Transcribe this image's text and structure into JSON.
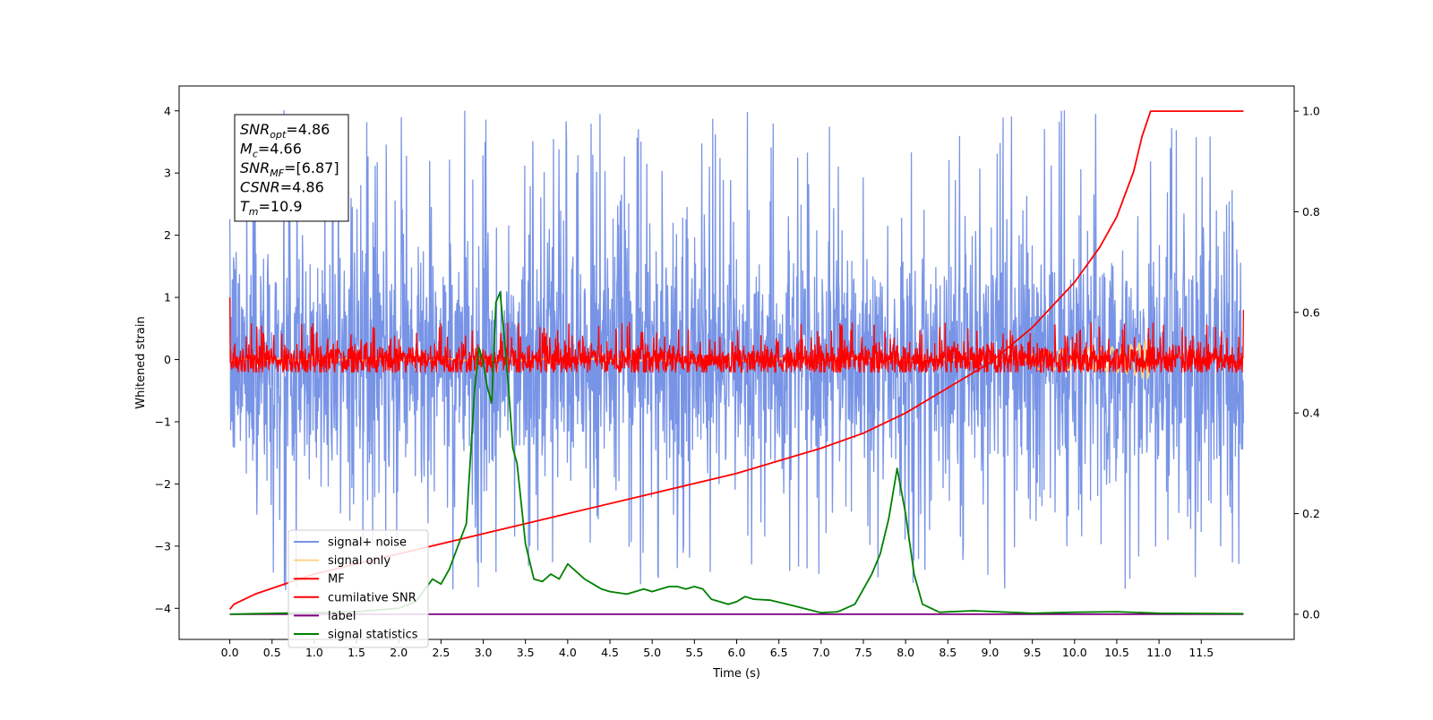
{
  "chart_data": {
    "type": "line",
    "xlabel": "Time (s)",
    "ylabel": "Whitened strain",
    "xlim": [
      -0.6,
      12.6
    ],
    "ylim": [
      -4.5,
      4.4
    ],
    "y2lim": [
      -0.05,
      1.05
    ],
    "x_ticks": [
      0.0,
      0.5,
      1.0,
      1.5,
      2.0,
      2.5,
      3.0,
      3.5,
      4.0,
      4.5,
      5.0,
      5.5,
      6.0,
      6.5,
      7.0,
      7.5,
      8.0,
      8.5,
      9.0,
      9.5,
      10.0,
      10.5,
      11.0,
      11.5
    ],
    "x_tick_labels": [
      "0.0",
      "0.5",
      "1.0",
      "1.5",
      "2.0",
      "2.5",
      "3.0",
      "3.5",
      "4.0",
      "4.5",
      "5.0",
      "5.5",
      "6.0",
      "6.5",
      "7.0",
      "7.5",
      "8.0",
      "8.5",
      "9.0",
      "9.5",
      "10.0",
      "10.5",
      "11.0",
      "11.5"
    ],
    "y_ticks": [
      4,
      3,
      2,
      1,
      0,
      -1,
      -2,
      -3,
      -4
    ],
    "y_tick_labels": [
      "4",
      "3",
      "2",
      "1",
      "0",
      "−1",
      "−2",
      "−3",
      "−4"
    ],
    "y2_ticks": [
      1.0,
      0.8,
      0.6,
      0.4,
      0.2,
      0.0
    ],
    "y2_tick_labels": [
      "1.0",
      "0.8",
      "0.6",
      "0.4",
      "0.2",
      "0.0"
    ],
    "grid": false,
    "legend_position": "lower-left",
    "annotation": {
      "lines": [
        {
          "sym": "SNR",
          "sub": "opt",
          "val": "=4.86"
        },
        {
          "sym": "M",
          "sub": "c",
          "val": "=4.66"
        },
        {
          "sym": "SNR",
          "sub": "MF",
          "val": "=[6.87]"
        },
        {
          "sym": "CSNR",
          "sub": "",
          "val": "=4.86"
        },
        {
          "sym": "T",
          "sub": "m",
          "val": "=10.9"
        }
      ]
    },
    "series": [
      {
        "name": "signal+ noise",
        "axis": "left",
        "color": "#7894e6",
        "kind": "noise",
        "x_range": [
          0.0,
          12.0
        ],
        "samples": 2400,
        "envelope_upper": 1.1,
        "envelope_lower": -1.1,
        "spike_max": 4.05,
        "spike_min": -3.7
      },
      {
        "name": "signal only",
        "axis": "left",
        "color": "#fdd587",
        "kind": "chirp",
        "x_range": [
          0.0,
          10.9
        ],
        "peak_time": 10.9,
        "peak_amplitude": 0.45
      },
      {
        "name": "MF",
        "axis": "left",
        "color": "#ff0000",
        "kind": "noise",
        "x_range": [
          0.0,
          12.0
        ],
        "samples": 2400,
        "envelope_upper": 0.15,
        "envelope_lower": -0.15,
        "spike_max": 0.6,
        "spike_min": -0.2,
        "start_value": 1.0,
        "end_value": 0.8
      },
      {
        "name": "cumilative SNR",
        "axis": "right",
        "color": "#ff0000",
        "x": [
          0.0,
          0.05,
          0.3,
          1.0,
          2.0,
          3.0,
          4.0,
          5.0,
          6.0,
          7.0,
          7.5,
          8.0,
          8.5,
          9.0,
          9.5,
          10.0,
          10.3,
          10.5,
          10.7,
          10.8,
          10.9,
          11.0,
          11.5,
          12.0
        ],
        "values": [
          0.01,
          0.02,
          0.04,
          0.08,
          0.12,
          0.16,
          0.2,
          0.24,
          0.28,
          0.33,
          0.36,
          0.4,
          0.45,
          0.5,
          0.57,
          0.66,
          0.73,
          0.79,
          0.88,
          0.95,
          1.0,
          1.0,
          1.0,
          1.0
        ]
      },
      {
        "name": "label",
        "axis": "right",
        "color": "#800080",
        "x": [
          0.0,
          12.0
        ],
        "values": [
          0.0,
          0.0
        ]
      },
      {
        "name": "signal statistics",
        "axis": "right",
        "color": "#008000",
        "x": [
          0.0,
          0.3,
          0.6,
          1.0,
          1.5,
          2.0,
          2.2,
          2.4,
          2.5,
          2.6,
          2.8,
          2.9,
          2.95,
          3.0,
          3.05,
          3.1,
          3.15,
          3.2,
          3.25,
          3.3,
          3.35,
          3.4,
          3.5,
          3.6,
          3.7,
          3.8,
          3.9,
          4.0,
          4.1,
          4.2,
          4.3,
          4.4,
          4.5,
          4.7,
          4.8,
          4.9,
          5.0,
          5.1,
          5.2,
          5.3,
          5.4,
          5.5,
          5.6,
          5.7,
          5.8,
          5.9,
          6.0,
          6.1,
          6.2,
          6.4,
          6.6,
          7.0,
          7.2,
          7.4,
          7.5,
          7.6,
          7.7,
          7.8,
          7.9,
          8.0,
          8.1,
          8.2,
          8.4,
          8.8,
          9.5,
          10.0,
          10.5,
          11.0,
          12.0
        ],
        "values": [
          0.0,
          0.001,
          0.002,
          0.003,
          0.005,
          0.012,
          0.025,
          0.07,
          0.06,
          0.09,
          0.18,
          0.45,
          0.53,
          0.5,
          0.45,
          0.42,
          0.62,
          0.64,
          0.55,
          0.45,
          0.33,
          0.3,
          0.14,
          0.07,
          0.065,
          0.08,
          0.07,
          0.1,
          0.085,
          0.07,
          0.06,
          0.05,
          0.045,
          0.04,
          0.045,
          0.05,
          0.045,
          0.05,
          0.055,
          0.055,
          0.05,
          0.055,
          0.05,
          0.03,
          0.025,
          0.02,
          0.025,
          0.035,
          0.03,
          0.028,
          0.02,
          0.003,
          0.005,
          0.02,
          0.05,
          0.08,
          0.12,
          0.19,
          0.29,
          0.2,
          0.08,
          0.02,
          0.004,
          0.007,
          0.002,
          0.004,
          0.005,
          0.002,
          0.001
        ]
      }
    ]
  }
}
